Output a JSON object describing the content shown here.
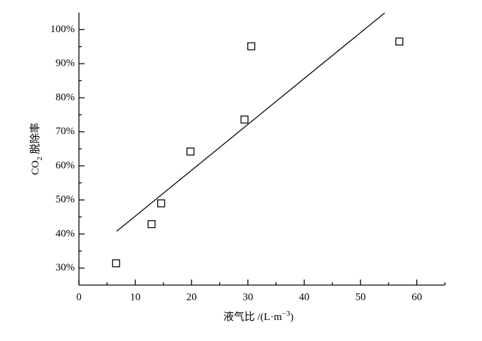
{
  "chart_data": {
    "type": "scatter",
    "x": [
      6.6,
      12.9,
      14.6,
      19.8,
      29.4,
      30.6,
      56.9
    ],
    "values": [
      31.4,
      42.9,
      49.0,
      64.2,
      73.6,
      95.1,
      96.5
    ],
    "color": "#000000",
    "fit_line": {
      "x": [
        6.7,
        54.3
      ],
      "y": [
        40.8,
        104.9
      ]
    },
    "xlabel": {
      "text": "液气比 /(L·m",
      "sup": "−3",
      "end": ")"
    },
    "ylabel": {
      "text": "CO",
      "sub": "2",
      "end": " 脱除率"
    },
    "xlim": [
      0,
      65
    ],
    "ylim": [
      25,
      105
    ],
    "xticks": [
      0,
      10,
      20,
      30,
      40,
      50,
      60
    ],
    "xminorticks": [
      5,
      15,
      25,
      35,
      45,
      55,
      65
    ],
    "yticks": [
      {
        "value": 30,
        "label": "30%"
      },
      {
        "value": 40,
        "label": "40%"
      },
      {
        "value": 50,
        "label": "50%"
      },
      {
        "value": 60,
        "label": "60%"
      },
      {
        "value": 70,
        "label": "70%"
      },
      {
        "value": 80,
        "label": "80%"
      },
      {
        "value": 90,
        "label": "90%"
      },
      {
        "value": 100,
        "label": "100%"
      }
    ],
    "yminorticks": [
      35,
      45,
      55,
      65,
      75,
      85,
      95
    ],
    "grid": false
  }
}
